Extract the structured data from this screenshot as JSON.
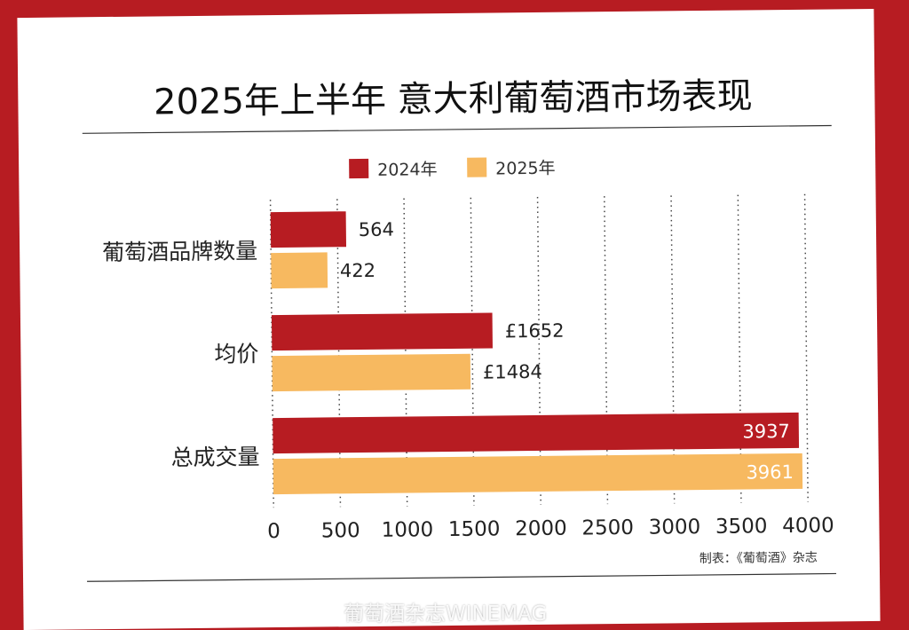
{
  "chart_data": {
    "type": "bar",
    "orientation": "horizontal",
    "title": "2025年上半年 意大利葡萄酒市场表现",
    "categories": [
      "葡萄酒品牌数量",
      "均价",
      "总成交量"
    ],
    "series": [
      {
        "name": "2024年",
        "values": [
          564,
          1652,
          3937
        ],
        "labels": [
          "564",
          "£1652",
          "3937"
        ],
        "color": "#b71c22"
      },
      {
        "name": "2025年",
        "values": [
          422,
          1484,
          3961
        ],
        "labels": [
          "422",
          "£1484",
          "3961"
        ],
        "color": "#f7b960"
      }
    ],
    "xticks": [
      "0",
      "500",
      "1000",
      "1500",
      "2000",
      "2500",
      "3000",
      "3500",
      "4000"
    ],
    "xlim": [
      0,
      4000
    ],
    "grid": "vertical-dotted",
    "legend": "top-center",
    "credit": "制表：《葡萄酒》杂志"
  },
  "watermark": "葡萄酒杂志WINEMAG"
}
